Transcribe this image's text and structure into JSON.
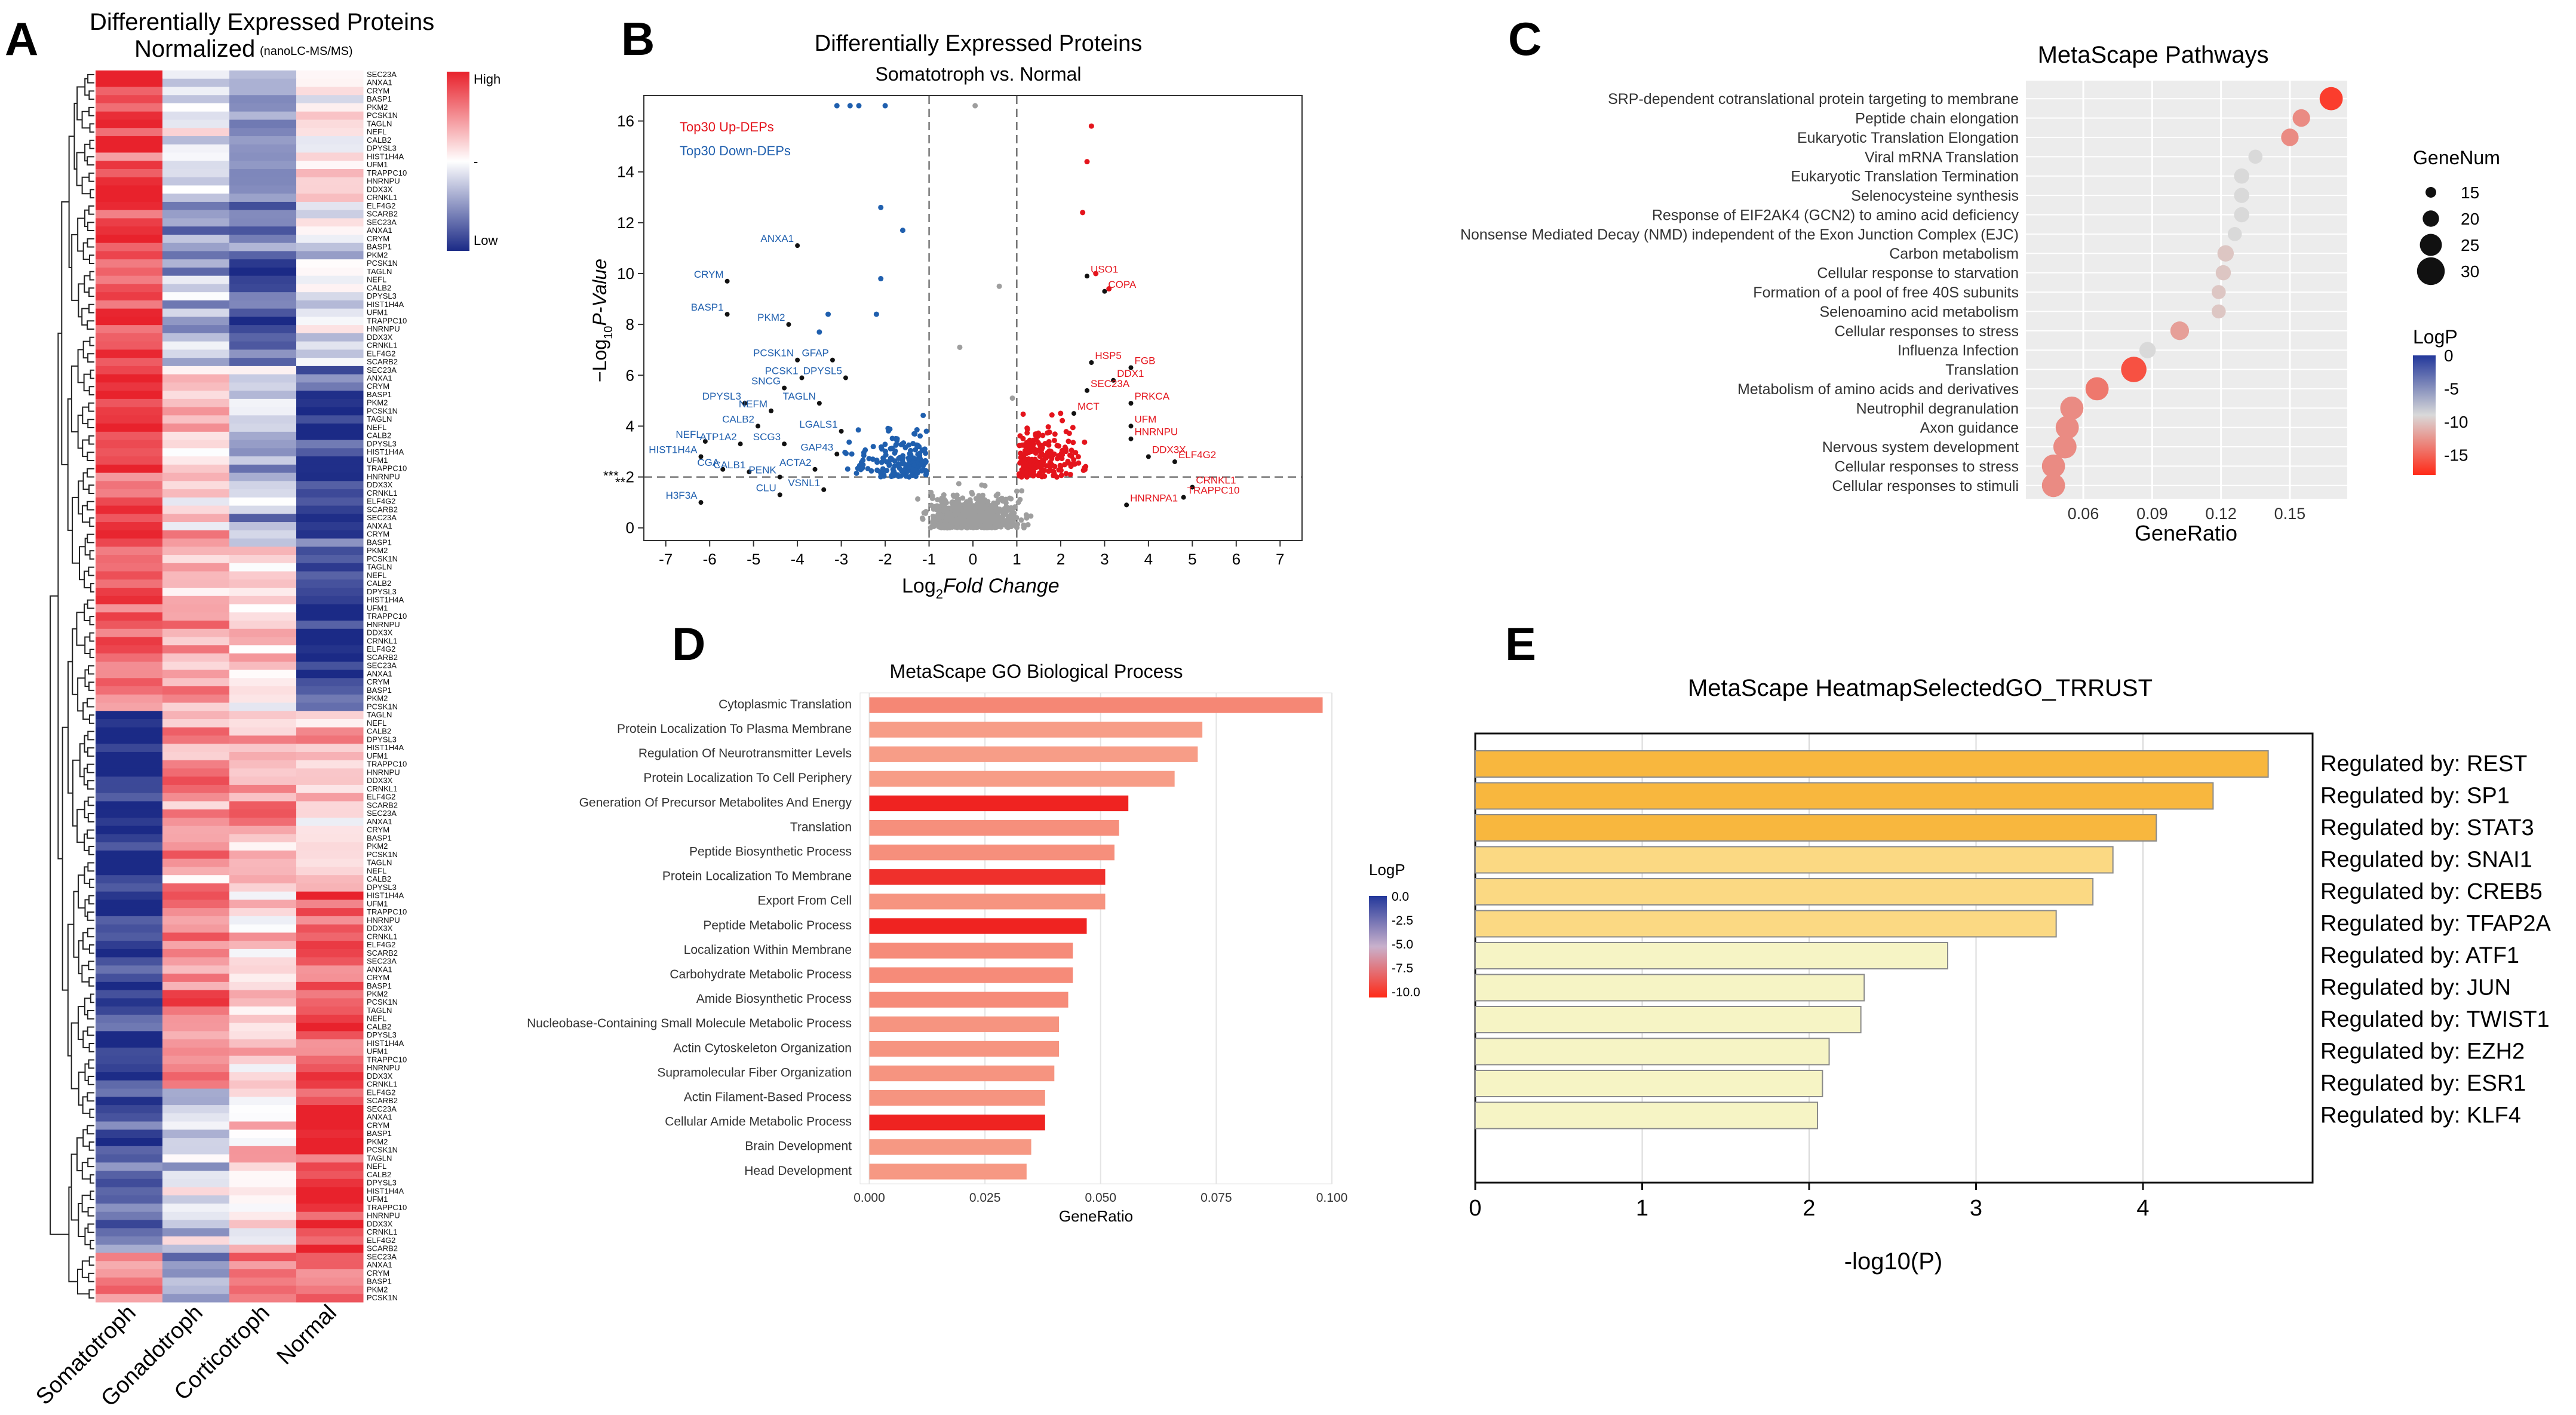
{
  "chart_data": [
    {
      "panel": "A",
      "type": "heatmap",
      "title": "Differentially Expressed Proteins",
      "subtitle": "Normalized",
      "note": "(nanoLC-MS/MS)",
      "columns": [
        "Somatotroph",
        "Gonadotroph",
        "Corticotroph",
        "Normal"
      ],
      "legend": {
        "high": "High",
        "mid": "-",
        "low": "Low"
      },
      "colors": {
        "high": "#e8222c",
        "mid": "#ffffff",
        "low": "#1b2a86"
      },
      "row_label_examples": [
        "SEC23A",
        "ANXA1",
        "CRYM",
        "BASP1",
        "PKM2",
        "PCSK1N",
        "TAGLN",
        "NEFL",
        "CALB2",
        "DPYSL3",
        "HIST1H4A",
        "UFM1",
        "TRAPPC10",
        "HNRNPU",
        "DDX3X",
        "CRNKL1",
        "ELF4G2",
        "SCARB2"
      ]
    },
    {
      "panel": "B",
      "type": "scatter",
      "title": "Differentially Expressed Proteins",
      "subtitle": "Somatotroph vs. Normal",
      "xlabel": "Log2 Fold Change",
      "ylabel": "-Log10 P-Value",
      "xlim": [
        -7.5,
        7.5
      ],
      "ylim": [
        -0.5,
        17
      ],
      "xticks": [
        -7,
        -6,
        -5,
        -4,
        -3,
        -2,
        -1,
        0,
        1,
        2,
        3,
        4,
        5,
        6,
        7
      ],
      "yticks": [
        0,
        2,
        4,
        6,
        8,
        10,
        12,
        14,
        16
      ],
      "sig_markers": [
        "***",
        "**"
      ],
      "threshold_y": 2,
      "threshold_x": [
        -1,
        1
      ],
      "legend": [
        "Top30 Up-DEPs",
        "Top30 Down-DEPs"
      ],
      "colors": {
        "up": "#e4141c",
        "down": "#1f5fae",
        "ns": "#9e9e9e"
      },
      "down_labels": [
        {
          "label": "ANXA1",
          "x": -4.0,
          "y": 11.1
        },
        {
          "label": "CRYM",
          "x": -5.6,
          "y": 9.7
        },
        {
          "label": "BASP1",
          "x": -5.6,
          "y": 8.4
        },
        {
          "label": "PKM2",
          "x": -4.2,
          "y": 8.0
        },
        {
          "label": "PCSK1N",
          "x": -4.0,
          "y": 6.6
        },
        {
          "label": "GFAP",
          "x": -3.2,
          "y": 6.6
        },
        {
          "label": "PCSK1",
          "x": -3.9,
          "y": 5.9
        },
        {
          "label": "DPYSL5",
          "x": -2.9,
          "y": 5.9
        },
        {
          "label": "SNCG",
          "x": -4.3,
          "y": 5.5
        },
        {
          "label": "DPYSL3",
          "x": -5.2,
          "y": 4.9
        },
        {
          "label": "TAGLN",
          "x": -3.5,
          "y": 4.9
        },
        {
          "label": "NEFM",
          "x": -4.6,
          "y": 4.6
        },
        {
          "label": "CALB2",
          "x": -4.9,
          "y": 4.0
        },
        {
          "label": "LGALS1",
          "x": -3.0,
          "y": 3.8
        },
        {
          "label": "NEFL",
          "x": -6.1,
          "y": 3.4
        },
        {
          "label": "ATP1A2",
          "x": -5.3,
          "y": 3.3
        },
        {
          "label": "SCG3",
          "x": -4.3,
          "y": 3.3
        },
        {
          "label": "HIST1H4A",
          "x": -6.2,
          "y": 2.8
        },
        {
          "label": "GAP43",
          "x": -3.1,
          "y": 2.9
        },
        {
          "label": "CGA",
          "x": -5.7,
          "y": 2.3
        },
        {
          "label": "CALB1",
          "x": -5.1,
          "y": 2.2
        },
        {
          "label": "ACTA2",
          "x": -3.6,
          "y": 2.3
        },
        {
          "label": "PENK",
          "x": -4.4,
          "y": 2.0
        },
        {
          "label": "CLU",
          "x": -4.4,
          "y": 1.3
        },
        {
          "label": "VSNL1",
          "x": -3.4,
          "y": 1.5
        },
        {
          "label": "H3F3A",
          "x": -6.2,
          "y": 1.0
        }
      ],
      "up_labels": [
        {
          "label": "USO1",
          "x": 2.6,
          "y": 9.9
        },
        {
          "label": "COPA",
          "x": 3.0,
          "y": 9.3
        },
        {
          "label": "HSP5",
          "x": 2.7,
          "y": 6.5
        },
        {
          "label": "FGB",
          "x": 3.6,
          "y": 6.3
        },
        {
          "label": "DDX1",
          "x": 3.2,
          "y": 5.8
        },
        {
          "label": "SEC23A",
          "x": 2.6,
          "y": 5.4
        },
        {
          "label": "PRKCA",
          "x": 3.6,
          "y": 4.9
        },
        {
          "label": "MCT",
          "x": 2.3,
          "y": 4.5
        },
        {
          "label": "UFM",
          "x": 3.6,
          "y": 4.0
        },
        {
          "label": "HNRNPU",
          "x": 3.6,
          "y": 3.5
        },
        {
          "label": "DDX3X",
          "x": 4.0,
          "y": 2.8
        },
        {
          "label": "ELF4G2",
          "x": 4.6,
          "y": 2.6
        },
        {
          "label": "CRNKL1",
          "x": 5.0,
          "y": 1.6
        },
        {
          "label": "TRAPPC10",
          "x": 4.8,
          "y": 1.2
        },
        {
          "label": "HNRNPA1",
          "x": 3.5,
          "y": 0.9
        }
      ]
    },
    {
      "panel": "C",
      "type": "scatter",
      "title": "MetaScape Pathways",
      "xlabel": "GeneRatio",
      "xlim": [
        0.035,
        0.175
      ],
      "xticks": [
        0.06,
        0.09,
        0.12,
        0.15
      ],
      "size_legend_title": "GeneNum",
      "size_legend": [
        15,
        20,
        25,
        30
      ],
      "color_legend_title": "LogP",
      "color_legend_ticks": [
        0,
        -5,
        -10,
        -15
      ],
      "colors": {
        "low": "#23389b",
        "mid": "#d9d9d9",
        "high": "#ff2a17"
      },
      "categories": [
        "SRP-dependent cotranslational protein targeting to membrane",
        "Peptide chain elongation",
        "Eukaryotic Translation Elongation",
        "Viral mRNA Translation",
        "Eukaryotic Translation Termination",
        "Selenocysteine synthesis",
        "Response of EIF2AK4 (GCN2) to amino acid deficiency",
        "Nonsense Mediated Decay (NMD) independent of the Exon Junction Complex (EJC)",
        "Carbon metabolism",
        "Cellular response to starvation",
        "Formation of a pool of free 40S subunits",
        "Selenoamino acid metabolism",
        "Cellular responses to stress",
        "Influenza Infection",
        "Translation",
        "Metabolism of amino acids and derivatives",
        "Neutrophil degranulation",
        "Axon guidance",
        "Nervous system development",
        "Cellular responses to stress",
        "Cellular responses to stimuli"
      ],
      "x": [
        0.168,
        0.155,
        0.15,
        0.135,
        0.129,
        0.129,
        0.129,
        0.126,
        0.122,
        0.121,
        0.119,
        0.119,
        0.102,
        0.088,
        0.082,
        0.066,
        0.055,
        0.053,
        0.052,
        0.047,
        0.047
      ],
      "logp": [
        -17,
        -13,
        -13,
        -9,
        -9,
        -9,
        -9,
        -8,
        -10,
        -10,
        -10,
        -10,
        -12,
        -6,
        -16,
        -14,
        -13,
        -13,
        -13,
        -13,
        -13
      ],
      "genenum": [
        26,
        21,
        21,
        18,
        19,
        19,
        19,
        18,
        20,
        19,
        18,
        18,
        22,
        20,
        28,
        26,
        26,
        26,
        26,
        26,
        26
      ]
    },
    {
      "panel": "D",
      "type": "bar",
      "orientation": "horizontal",
      "title": "MetaScape GO Biological Process",
      "xlabel": "GeneRatio",
      "xlim": [
        -0.002,
        0.1
      ],
      "xticks": [
        "0.000",
        "0.025",
        "0.050",
        "0.075",
        "0.100"
      ],
      "color_legend_title": "LogP",
      "color_legend_ticks": [
        "0.0",
        "-2.5",
        "-5.0",
        "-7.5",
        "-10.0"
      ],
      "categories": [
        "Cytoplasmic Translation",
        "Protein Localization To Plasma Membrane",
        "Regulation Of Neurotransmitter Levels",
        "Protein Localization To Cell Periphery",
        "Generation Of Precursor Metabolites And Energy",
        "Translation",
        "Peptide Biosynthetic Process",
        "Protein Localization To Membrane",
        "Export From Cell",
        "Peptide Metabolic Process",
        "Localization Within Membrane",
        "Carbohydrate Metabolic Process",
        "Amide Biosynthetic Process",
        "Nucleobase-Containing Small Molecule Metabolic Process",
        "Actin Cytoskeleton Organization",
        "Supramolecular Fiber Organization",
        "Actin Filament-Based Process",
        "Cellular Amide Metabolic Process",
        "Brain Development",
        "Head Development"
      ],
      "values": [
        0.098,
        0.072,
        0.071,
        0.066,
        0.056,
        0.054,
        0.053,
        0.051,
        0.051,
        0.047,
        0.044,
        0.044,
        0.043,
        0.041,
        0.041,
        0.04,
        0.038,
        0.038,
        0.035,
        0.034
      ],
      "logp": [
        -8.5,
        -8.0,
        -8.0,
        -8.0,
        -10.8,
        -8.3,
        -8.3,
        -10.5,
        -8.2,
        -10.8,
        -8.4,
        -8.4,
        -8.4,
        -8.2,
        -8.2,
        -8.2,
        -8.2,
        -10.8,
        -8.1,
        -8.1
      ]
    },
    {
      "panel": "E",
      "type": "bar",
      "orientation": "horizontal",
      "title": "MetaScape HeatmapSelectedGO_TRRUST",
      "xlabel": "-log10(P)",
      "xlim": [
        0,
        5
      ],
      "xticks": [
        0,
        1,
        2,
        3,
        4
      ],
      "categories": [
        "Regulated by: REST",
        "Regulated by: SP1",
        "Regulated by: STAT3",
        "Regulated by: SNAI1",
        "Regulated by: CREB5",
        "Regulated by: TFAP2A",
        "Regulated by: ATF1",
        "Regulated by: JUN",
        "Regulated by: TWIST1",
        "Regulated by: EZH2",
        "Regulated by: ESR1",
        "Regulated by: KLF4"
      ],
      "values": [
        4.75,
        4.42,
        4.08,
        3.82,
        3.7,
        3.48,
        2.83,
        2.33,
        2.31,
        2.12,
        2.08,
        2.05
      ],
      "colors": [
        "#f8b73e",
        "#f8b73e",
        "#f8b73e",
        "#fbd983",
        "#fbd983",
        "#fbd983",
        "#f6f4c5",
        "#f6f4c5",
        "#f6f4c5",
        "#f6f4c5",
        "#f6f4c5",
        "#f6f4c5"
      ]
    }
  ],
  "panel_letters": [
    "A",
    "B",
    "C",
    "D",
    "E"
  ],
  "axis_parts": {
    "log": "Log",
    "ten": "10",
    "two": "2",
    "neg_log": "−Log",
    "fold": "Fold Change",
    "pval": "P-Value"
  }
}
